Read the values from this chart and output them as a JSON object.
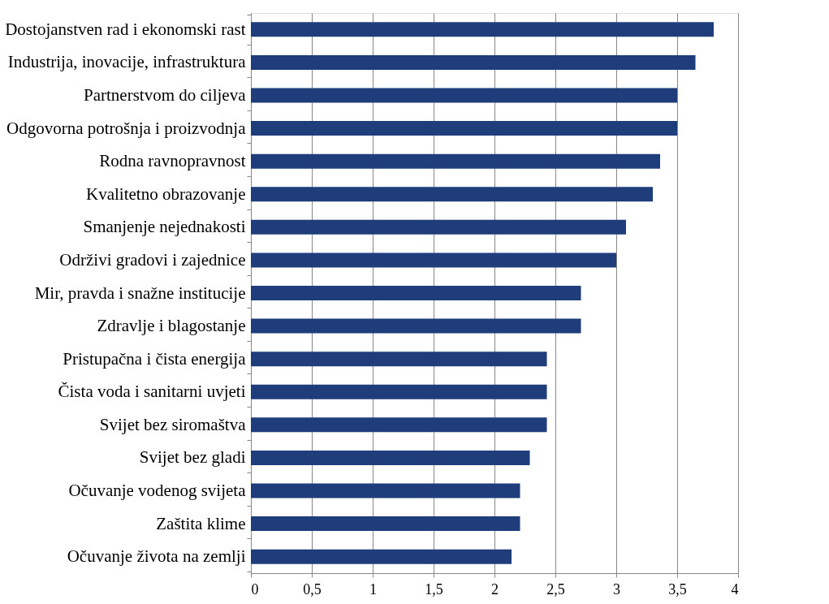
{
  "chart_data": {
    "type": "bar",
    "orientation": "horizontal",
    "categories": [
      "Dostojanstven rad i ekonomski rast",
      "Industrija, inovacije, infrastruktura",
      "Partnerstvom do ciljeva",
      "Odgovorna potrošnja i proizvodnja",
      "Rodna ravnopravnost",
      "Kvalitetno obrazovanje",
      "Smanjenje nejednakosti",
      "Održivi gradovi i zajednice",
      "Mir, pravda i snažne institucije",
      "Zdravlje i blagostanje",
      "Pristupačna i čista energija",
      "Čista voda i sanitarni uvjeti",
      "Svijet bez siromaštva",
      "Svijet bez gladi",
      "Očuvanje vodenog svijeta",
      "Zaštita klime",
      "Očuvanje života na zemlji"
    ],
    "values": [
      3.8,
      3.65,
      3.5,
      3.5,
      3.36,
      3.3,
      3.08,
      3.0,
      2.71,
      2.71,
      2.43,
      2.43,
      2.43,
      2.29,
      2.21,
      2.21,
      2.14
    ],
    "color": "#1f3d7a",
    "xlim": [
      0,
      4
    ],
    "xticks": [
      0,
      {
        "value": 0.5,
        "label": "0,5"
      },
      1,
      {
        "value": 1.5,
        "label": "1,5"
      },
      2,
      {
        "value": 2.5,
        "label": "2,5"
      },
      3,
      {
        "value": 3.5,
        "label": "3,5"
      },
      4
    ],
    "grid": "x"
  }
}
